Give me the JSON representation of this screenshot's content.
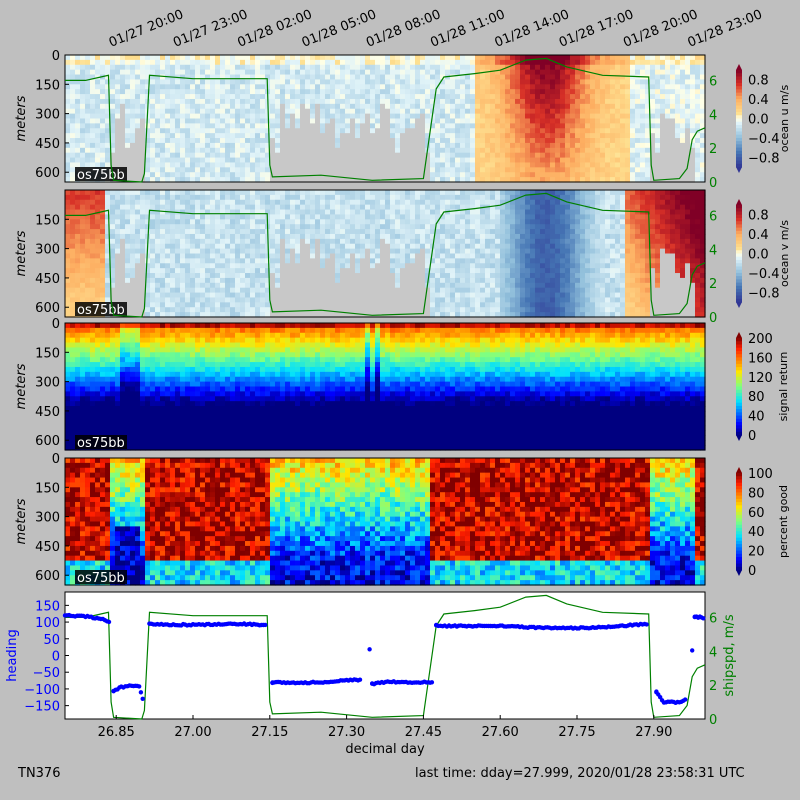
{
  "figure": {
    "ship_label": "TN376",
    "last_time": "last time: dday=27.999,  2020/01/28 23:58:31 UTC",
    "background": "#bfbfbf"
  },
  "chart_data": [
    {
      "type": "heatmap",
      "panel": "ocean_u",
      "instrument_label": "os75bb",
      "ylabel": "meters",
      "yticks": [
        "0",
        "150",
        "300",
        "450",
        "600"
      ],
      "ylim": [
        650,
        0
      ],
      "top_time_ticks": [
        "01/27 20:00",
        "01/27 23:00",
        "01/28 02:00",
        "01/28 05:00",
        "01/28 08:00",
        "01/28 11:00",
        "01/28 14:00",
        "01/28 17:00",
        "01/28 20:00",
        "01/28 23:00"
      ],
      "colorbar": {
        "label": "ocean u m/s",
        "ticks": [
          "0.8",
          "0.4",
          "0.0",
          "−0.4",
          "−0.8"
        ],
        "range": [
          -1,
          1
        ],
        "colormap": "RdYlBu_r"
      },
      "overlay": {
        "name": "shipspd",
        "ticks": [
          "6",
          "4",
          "2",
          "0"
        ],
        "color": "#008000"
      }
    },
    {
      "type": "heatmap",
      "panel": "ocean_v",
      "instrument_label": "os75bb",
      "ylabel": "meters",
      "yticks": [
        "150",
        "300",
        "450",
        "600"
      ],
      "ylim": [
        650,
        0
      ],
      "colorbar": {
        "label": "ocean v m/s",
        "ticks": [
          "0.8",
          "0.4",
          "0.0",
          "−0.4",
          "−0.8"
        ],
        "range": [
          -1,
          1
        ],
        "colormap": "RdYlBu_r"
      },
      "overlay": {
        "name": "shipspd",
        "ticks": [
          "6",
          "4",
          "2",
          "0"
        ],
        "color": "#008000"
      }
    },
    {
      "type": "heatmap",
      "panel": "signal_return",
      "instrument_label": "os75bb",
      "ylabel": "meters",
      "yticks": [
        "0",
        "150",
        "300",
        "450",
        "600"
      ],
      "ylim": [
        650,
        0
      ],
      "colorbar": {
        "label": "signal return",
        "ticks": [
          "200",
          "160",
          "120",
          "80",
          "40",
          "0"
        ],
        "range": [
          0,
          200
        ],
        "colormap": "jet"
      }
    },
    {
      "type": "heatmap",
      "panel": "percent_good",
      "instrument_label": "os75bb",
      "ylabel": "meters",
      "yticks": [
        "0",
        "150",
        "300",
        "450",
        "600"
      ],
      "ylim": [
        650,
        0
      ],
      "colorbar": {
        "label": "percent good",
        "ticks": [
          "100",
          "80",
          "60",
          "40",
          "20",
          "0"
        ],
        "range": [
          0,
          100
        ],
        "colormap": "jet"
      }
    },
    {
      "type": "scatter",
      "panel": "heading_shipspd",
      "xlabel": "decimal day",
      "xticks": [
        "26.85",
        "27.00",
        "27.15",
        "27.30",
        "27.45",
        "27.60",
        "27.75",
        "27.90"
      ],
      "xlim": [
        26.75,
        28.0
      ],
      "ylabel": "heading",
      "yticks": [
        "150",
        "100",
        "50",
        "0",
        "−50",
        "−100",
        "−150"
      ],
      "ylim": [
        -190,
        190
      ],
      "y2label": "shipspd, m/s",
      "y2ticks": [
        "6",
        "4",
        "2",
        "0"
      ],
      "y2lim": [
        0,
        7.5
      ],
      "heading_color": "#0000ff",
      "shipspd_color": "#008000",
      "heading_points": [
        [
          26.75,
          120
        ],
        [
          26.79,
          117
        ],
        [
          26.82,
          110
        ],
        [
          26.84,
          100
        ],
        [
          26.845,
          -105
        ],
        [
          26.86,
          -95
        ],
        [
          26.88,
          -90
        ],
        [
          26.895,
          -92
        ],
        [
          26.905,
          -150
        ],
        [
          26.915,
          95
        ],
        [
          26.95,
          92
        ],
        [
          27.0,
          92
        ],
        [
          27.05,
          93
        ],
        [
          27.1,
          94
        ],
        [
          27.145,
          91
        ],
        [
          27.155,
          -80
        ],
        [
          27.2,
          -82
        ],
        [
          27.25,
          -80
        ],
        [
          27.3,
          -75
        ],
        [
          27.33,
          -72
        ],
        [
          27.345,
          20
        ],
        [
          27.35,
          -85
        ],
        [
          27.38,
          -78
        ],
        [
          27.42,
          -80
        ],
        [
          27.46,
          -80
        ],
        [
          27.47,
          -80
        ],
        [
          27.475,
          90
        ],
        [
          27.5,
          88
        ],
        [
          27.55,
          88
        ],
        [
          27.6,
          88
        ],
        [
          27.65,
          85
        ],
        [
          27.7,
          82
        ],
        [
          27.75,
          82
        ],
        [
          27.8,
          85
        ],
        [
          27.85,
          90
        ],
        [
          27.89,
          95
        ],
        [
          27.905,
          -110
        ],
        [
          27.92,
          -140
        ],
        [
          27.95,
          -140
        ],
        [
          27.965,
          -130
        ],
        [
          27.975,
          15
        ],
        [
          27.98,
          115
        ],
        [
          27.99,
          115
        ],
        [
          28.0,
          110
        ]
      ],
      "shipspd_points": [
        [
          26.75,
          6.0
        ],
        [
          26.79,
          6.0
        ],
        [
          26.82,
          6.2
        ],
        [
          26.835,
          6.3
        ],
        [
          26.84,
          1.0
        ],
        [
          26.845,
          0.1
        ],
        [
          26.9,
          0.0
        ],
        [
          26.905,
          0.5
        ],
        [
          26.915,
          6.3
        ],
        [
          27.0,
          6.1
        ],
        [
          27.1,
          6.1
        ],
        [
          27.145,
          6.1
        ],
        [
          27.15,
          1.0
        ],
        [
          27.155,
          0.3
        ],
        [
          27.25,
          0.4
        ],
        [
          27.35,
          0.1
        ],
        [
          27.45,
          0.2
        ],
        [
          27.475,
          5.5
        ],
        [
          27.49,
          6.2
        ],
        [
          27.55,
          6.4
        ],
        [
          27.6,
          6.6
        ],
        [
          27.65,
          7.2
        ],
        [
          27.69,
          7.3
        ],
        [
          27.73,
          6.8
        ],
        [
          27.8,
          6.3
        ],
        [
          27.89,
          6.2
        ],
        [
          27.895,
          1.0
        ],
        [
          27.9,
          0.1
        ],
        [
          27.95,
          0.2
        ],
        [
          27.965,
          0.8
        ],
        [
          27.975,
          2.5
        ],
        [
          27.985,
          3.0
        ],
        [
          28.0,
          3.2
        ]
      ]
    }
  ]
}
